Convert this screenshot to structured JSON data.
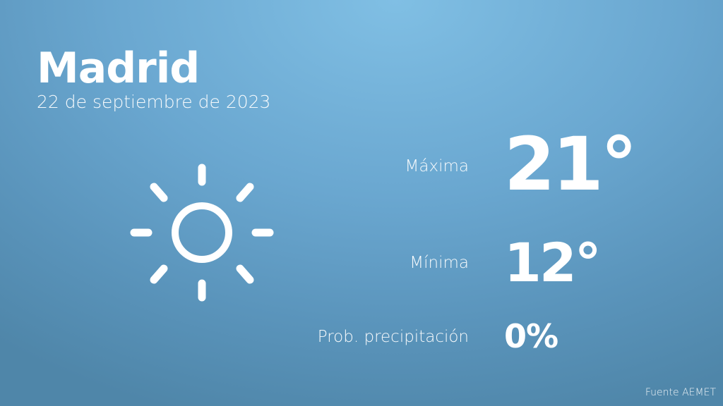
{
  "city": "Madrid",
  "date": "22 de septiembre de 2023",
  "weather_icon": "sun-icon",
  "max": {
    "label": "Máxima",
    "value": "21°"
  },
  "min": {
    "label": "Mínima",
    "value": "12°"
  },
  "precip": {
    "label": "Prob. precipitación",
    "value": "0%"
  },
  "source": "Fuente AEMET",
  "colors": {
    "bg_top": "#80bfe4",
    "bg_bottom": "#4f86a9",
    "text": "#ffffff"
  }
}
